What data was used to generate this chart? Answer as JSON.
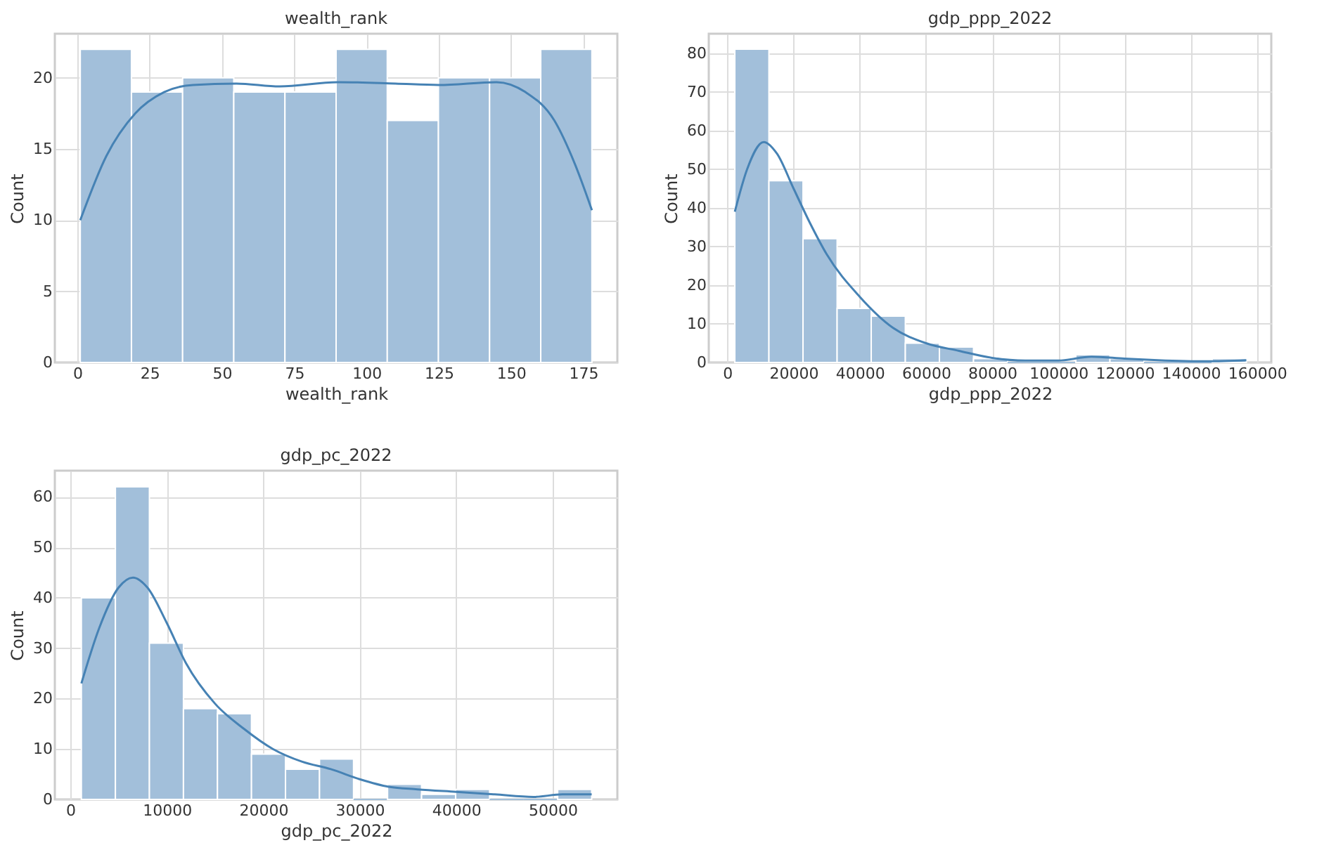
{
  "chart_data": [
    {
      "type": "histogram",
      "title": "wealth_rank",
      "xlabel": "wealth_rank",
      "ylabel": "Count",
      "grid": true,
      "bins": [
        1,
        18.7,
        36.4,
        54.1,
        71.8,
        89.5,
        107.2,
        124.9,
        142.6,
        160.3,
        178
      ],
      "xlim": [
        -7.8,
        186.8
      ],
      "xticks": [
        0,
        25,
        50,
        75,
        100,
        125,
        150,
        175
      ],
      "ylim": [
        0,
        23.1
      ],
      "yticks": [
        0,
        5,
        10,
        15,
        20
      ],
      "series": [
        {
          "type": "histogram",
          "color": "#a2bfda",
          "values": [
            22,
            19,
            20,
            19,
            19,
            22,
            17,
            20,
            20,
            22
          ]
        },
        {
          "type": "line",
          "color": "#4682b4",
          "x": [
            1,
            10,
            20,
            30,
            40,
            55,
            70,
            90,
            110,
            125,
            145,
            155,
            165,
            172,
            178
          ],
          "values": [
            10,
            14.5,
            17.5,
            19,
            19.5,
            19.6,
            19.4,
            19.7,
            19.6,
            19.5,
            19.7,
            19,
            17,
            14,
            10.7
          ]
        }
      ]
    },
    {
      "type": "histogram",
      "title": "gdp_ppp_2022",
      "xlabel": "gdp_ppp_2022",
      "ylabel": "Count",
      "grid": true,
      "bins": [
        2270,
        12570,
        22870,
        33170,
        43470,
        53770,
        64070,
        74370,
        84670,
        94970,
        105270,
        115570,
        125870,
        136170,
        146470,
        156770
      ],
      "xlim": [
        -5600,
        164300
      ],
      "xticks": [
        0,
        20000,
        40000,
        60000,
        80000,
        100000,
        120000,
        140000,
        160000
      ],
      "ylim": [
        0,
        85
      ],
      "yticks": [
        0,
        10,
        20,
        30,
        40,
        50,
        60,
        70,
        80
      ],
      "series": [
        {
          "type": "histogram",
          "color": "#a2bfda",
          "values": [
            81,
            47,
            32,
            14,
            12,
            5,
            4,
            1,
            0,
            0,
            2,
            1,
            0,
            0,
            1
          ]
        },
        {
          "type": "line",
          "color": "#4682b4",
          "x": [
            2270,
            6000,
            11000,
            15000,
            20000,
            25000,
            30000,
            40000,
            50000,
            60000,
            70000,
            80000,
            90000,
            100000,
            110000,
            120000,
            130000,
            145000,
            156770
          ],
          "values": [
            39,
            50,
            57,
            54,
            45,
            36,
            28,
            17,
            9,
            5,
            3,
            1.2,
            0.5,
            0.5,
            1.5,
            1,
            0.6,
            0.3,
            0.6
          ]
        }
      ]
    },
    {
      "type": "histogram",
      "title": "gdp_pc_2022",
      "xlabel": "gdp_pc_2022",
      "ylabel": "Count",
      "grid": true,
      "bins": [
        1150,
        4676,
        8202,
        11728,
        15254,
        18780,
        22306,
        25832,
        29358,
        32884,
        36410,
        39936,
        43462,
        46988,
        50514,
        54040
      ],
      "xlim": [
        -1600,
        56700
      ],
      "xticks": [
        0,
        10000,
        20000,
        30000,
        40000,
        50000
      ],
      "ylim": [
        0,
        65.2
      ],
      "yticks": [
        0,
        10,
        20,
        30,
        40,
        50,
        60
      ],
      "series": [
        {
          "type": "histogram",
          "color": "#a2bfda",
          "values": [
            40,
            62,
            31,
            18,
            17,
            9,
            6,
            8,
            0,
            3,
            1,
            2,
            0,
            0,
            2
          ]
        },
        {
          "type": "line",
          "color": "#4682b4",
          "x": [
            1150,
            3000,
            5000,
            6500,
            8000,
            10000,
            12000,
            15000,
            18000,
            21000,
            24000,
            27000,
            30000,
            33000,
            36000,
            40000,
            44000,
            48000,
            51000,
            54040
          ],
          "values": [
            23,
            34,
            42,
            44,
            42,
            35,
            27,
            19,
            14,
            10,
            7.5,
            6,
            4,
            2.5,
            2,
            1.5,
            1,
            0.5,
            1,
            1
          ]
        }
      ]
    }
  ]
}
